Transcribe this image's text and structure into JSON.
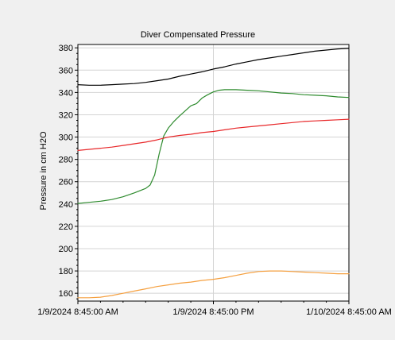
{
  "chart_data": {
    "type": "line",
    "title": "Diver Compensated Pressure",
    "xlabel": "",
    "ylabel": "Pressure in cm H2O",
    "ylim": [
      153,
      383
    ],
    "yticks": [
      160,
      180,
      200,
      220,
      240,
      260,
      280,
      300,
      320,
      340,
      360,
      380
    ],
    "xlim": [
      0,
      24
    ],
    "x_tick_values": [
      0,
      12,
      24
    ],
    "x_tick_labels": [
      "1/9/2024 8:45:00 AM",
      "1/9/2024 8:45:00 PM",
      "1/10/2024 8:45:00 AM"
    ],
    "grid": true,
    "legend": "none",
    "series": [
      {
        "color": "#000000",
        "x": [
          0,
          1,
          2,
          3,
          4,
          5,
          6,
          7,
          8,
          9,
          10,
          11,
          12,
          13,
          14,
          15,
          16,
          17,
          18,
          19,
          20,
          21,
          22,
          23,
          24
        ],
        "values": [
          347,
          346.5,
          346.5,
          347,
          347.5,
          348,
          349,
          350.5,
          352,
          354.5,
          356.5,
          358.5,
          361,
          363,
          365.5,
          367.5,
          369.5,
          371,
          372.5,
          374,
          375.5,
          377,
          378,
          379,
          379.5
        ]
      },
      {
        "color": "#2e8b2e",
        "x": [
          0,
          1,
          2,
          3,
          4,
          5,
          6,
          6.4,
          6.8,
          7.2,
          7.6,
          8,
          8.5,
          9,
          9.5,
          10,
          10.5,
          11,
          11.5,
          12,
          12.5,
          13,
          14,
          15,
          16,
          17,
          18,
          19,
          20,
          21,
          22,
          23,
          24
        ],
        "values": [
          240.5,
          241.5,
          242.5,
          244,
          246.5,
          250,
          254,
          257,
          266,
          285,
          301,
          308,
          314,
          319,
          323.5,
          328,
          330,
          335,
          338,
          340.5,
          342,
          342.5,
          342.5,
          342,
          341.5,
          340.5,
          339.5,
          339,
          338,
          337.5,
          337,
          336,
          335.5
        ]
      },
      {
        "color": "#e8282a",
        "x": [
          0,
          1,
          2,
          3,
          4,
          5,
          6,
          7,
          8,
          9,
          10,
          11,
          12,
          13,
          14,
          15,
          16,
          17,
          18,
          19,
          20,
          21,
          22,
          23,
          24
        ],
        "values": [
          288,
          289,
          290,
          291,
          292.5,
          294,
          295.5,
          297.5,
          300,
          301.5,
          302.5,
          304,
          305,
          306.5,
          308,
          309,
          310,
          311,
          312,
          313,
          314,
          314.5,
          315,
          315.5,
          316
        ]
      },
      {
        "color": "#f5a040",
        "x": [
          0,
          1,
          2,
          3,
          4,
          5,
          6,
          7,
          8,
          9,
          10,
          11,
          12,
          13,
          14,
          15,
          16,
          17,
          18,
          19,
          20,
          21,
          22,
          23,
          24
        ],
        "values": [
          156,
          156,
          156.5,
          158,
          160,
          162,
          164,
          166,
          167.5,
          169,
          170,
          171.5,
          172.5,
          174,
          176,
          178,
          179.5,
          180,
          180,
          179.5,
          179,
          178.5,
          178,
          177.5,
          177.5
        ]
      }
    ]
  }
}
